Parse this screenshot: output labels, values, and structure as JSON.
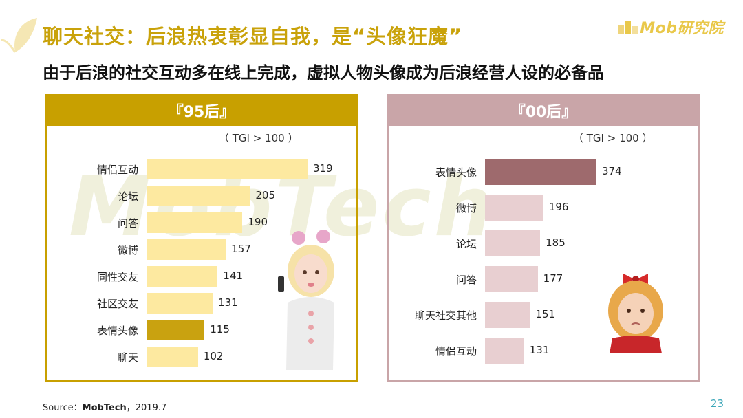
{
  "header": {
    "title": "聊天社交：后浪热衷彰显自我，是“头像狂魔”",
    "subtitle": "由于后浪的社交互动多在线上完成，虚拟人物头像成为后浪经营人设的必备品"
  },
  "logo": {
    "text": "Mob研究院"
  },
  "watermark": {
    "text": "MobTech"
  },
  "colors": {
    "accent_gold": "#c8a000",
    "title_gold": "#c9a20a",
    "bar_light_yellow": "#fde9a0",
    "bar_highlight_gold": "#c9a210",
    "rose_header": "#c9a5a8",
    "bar_light_rose": "#e8cfd1",
    "bar_highlight_rose": "#9e6a6d",
    "page_number": "#3aa6b8"
  },
  "chart_data": [
    {
      "type": "bar",
      "orientation": "horizontal",
      "title": "『95后』",
      "note": "（ TGI > 100 ）",
      "categories": [
        "情侣互动",
        "论坛",
        "问答",
        "微博",
        "同性交友",
        "社区交友",
        "表情头像",
        "聊天"
      ],
      "values": [
        319,
        205,
        190,
        157,
        141,
        131,
        115,
        102
      ],
      "highlight": "表情头像"
    },
    {
      "type": "bar",
      "orientation": "horizontal",
      "title": "『00后』",
      "note": "（ TGI > 100 ）",
      "categories": [
        "表情头像",
        "微博",
        "论坛",
        "问答",
        "聊天社交其他",
        "情侣互动"
      ],
      "values": [
        374,
        196,
        185,
        177,
        151,
        131
      ],
      "highlight": "表情头像"
    }
  ],
  "footer": {
    "source_label": "Source：",
    "source_name": "MobTech",
    "source_date": "，2019.7",
    "page_number": "23"
  }
}
